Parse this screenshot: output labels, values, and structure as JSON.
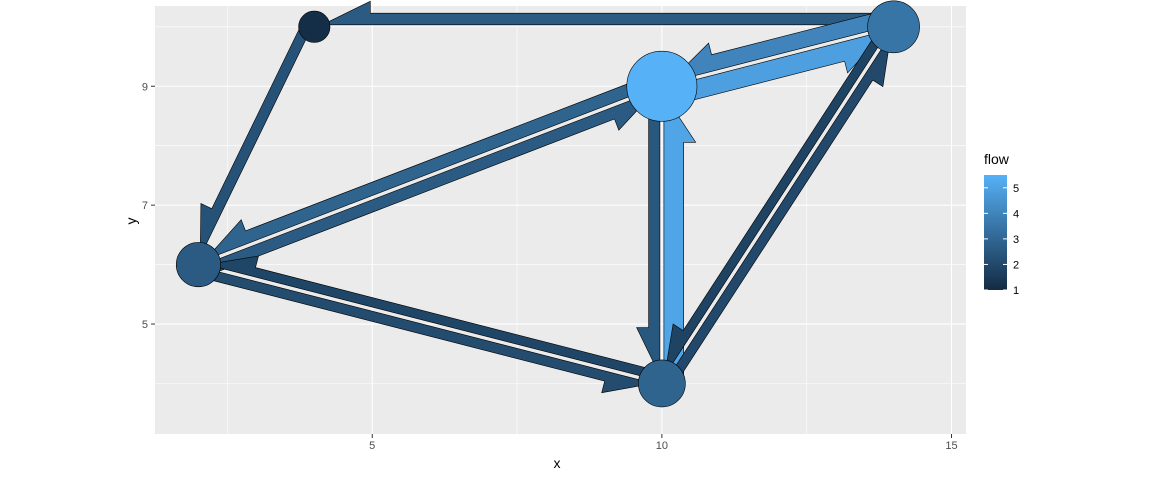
{
  "chart_data": {
    "type": "network",
    "xlabel": "x",
    "ylabel": "y",
    "xlim": [
      1.25,
      15.25
    ],
    "ylim": [
      3.15,
      10.35
    ],
    "x_ticks": [
      5,
      10,
      15
    ],
    "x_tick_labels": [
      "5",
      "10",
      "15"
    ],
    "y_ticks": [
      5,
      7,
      9
    ],
    "y_tick_labels": [
      "5",
      "7",
      "9"
    ],
    "grid": true,
    "background": "#EBEBEB",
    "legend": {
      "title": "flow",
      "position": "right",
      "min": 1,
      "max": 5.5,
      "breaks": [
        1,
        2,
        3,
        4,
        5
      ],
      "labels": [
        "1",
        "2",
        "3",
        "4",
        "5"
      ],
      "low_color": "#132B43",
      "high_color": "#56B1F7"
    },
    "nodes": [
      {
        "id": 1,
        "x": 4,
        "y": 10,
        "flow": 1.1
      },
      {
        "id": 2,
        "x": 14,
        "y": 10,
        "flow": 3.5
      },
      {
        "id": 3,
        "x": 10,
        "y": 9,
        "flow": 5.6
      },
      {
        "id": 4,
        "x": 2,
        "y": 6,
        "flow": 2.6
      },
      {
        "id": 5,
        "x": 10,
        "y": 4,
        "flow": 2.9
      }
    ],
    "edges": [
      {
        "from": 2,
        "to": 1,
        "flow": 2.6
      },
      {
        "from": 1,
        "to": 4,
        "flow": 2.3
      },
      {
        "from": 2,
        "to": 3,
        "flow": 4.0
      },
      {
        "from": 3,
        "to": 2,
        "flow": 4.9
      },
      {
        "from": 3,
        "to": 4,
        "flow": 2.9
      },
      {
        "from": 4,
        "to": 3,
        "flow": 2.6
      },
      {
        "from": 4,
        "to": 5,
        "flow": 2.1
      },
      {
        "from": 5,
        "to": 4,
        "flow": 1.9
      },
      {
        "from": 3,
        "to": 5,
        "flow": 2.5
      },
      {
        "from": 5,
        "to": 3,
        "flow": 5.1
      },
      {
        "from": 5,
        "to": 2,
        "flow": 2.0
      },
      {
        "from": 2,
        "to": 5,
        "flow": 1.8
      }
    ]
  }
}
